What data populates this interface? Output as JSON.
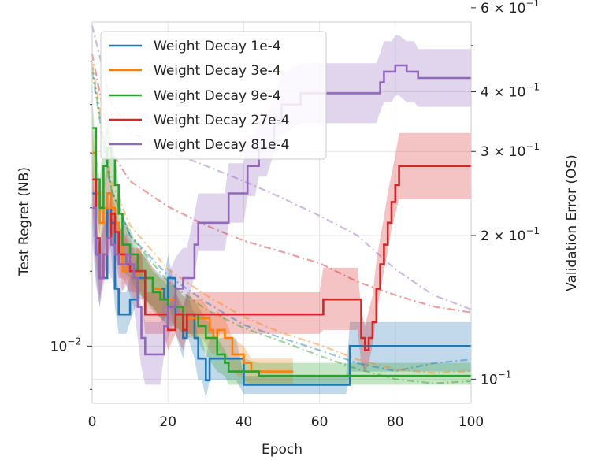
{
  "chart_data": {
    "type": "line",
    "title": "",
    "xlabel": "Epoch",
    "ylabel_left": "Test Regret (NB)",
    "ylabel_right": "Validation Error (OS)",
    "xlim": [
      0,
      100
    ],
    "ylim_left": [
      0.0087,
      0.022
    ],
    "ylim_right": [
      0.089,
      0.56
    ],
    "x_scale": "linear",
    "y_scale_left": "log",
    "y_scale_right": "log",
    "grid": true,
    "legend_position": "upper-left",
    "x_ticks": [
      0,
      20,
      40,
      60,
      80,
      100
    ],
    "x_tick_labels": [
      "0",
      "20",
      "40",
      "60",
      "80",
      "100"
    ],
    "y_left_ticks": [
      {
        "value": 0.01,
        "label": "10",
        "exp": "−2"
      }
    ],
    "y_right_ticks": [
      {
        "value": 0.6,
        "label": "6 × 10",
        "exp": "−1"
      },
      {
        "value": 0.4,
        "label": "4 × 10",
        "exp": "−1"
      },
      {
        "value": 0.3,
        "label": "3 × 10",
        "exp": "−1"
      },
      {
        "value": 0.2,
        "label": "2 × 10",
        "exp": "−1"
      },
      {
        "value": 0.1,
        "label": "10",
        "exp": "−1"
      }
    ],
    "series": [
      {
        "name": "Weight Decay 1e-4",
        "color": "#1f77b4",
        "regret": {
          "x": [
            0,
            1,
            2,
            4,
            5,
            6,
            7,
            9,
            10,
            12,
            14,
            16,
            19,
            20,
            22,
            24,
            25,
            27,
            28,
            29,
            30,
            31,
            38,
            40,
            49,
            50,
            66,
            67,
            68,
            100
          ],
          "y": [
            0.0145,
            0.0125,
            0.0118,
            0.0145,
            0.0135,
            0.0115,
            0.0108,
            0.0108,
            0.0112,
            0.0118,
            0.0118,
            0.0115,
            0.0112,
            0.0118,
            0.0108,
            0.0102,
            0.0108,
            0.0102,
            0.0097,
            0.0097,
            0.0092,
            0.0097,
            0.0097,
            0.0091,
            0.0091,
            0.0091,
            0.0091,
            0.0091,
            0.01,
            0.01
          ],
          "band_lower": [
            0.0135,
            0.0118,
            0.011,
            0.0135,
            0.0125,
            0.011,
            0.0103,
            0.0103,
            0.0106,
            0.0112,
            0.0112,
            0.011,
            0.0106,
            0.0112,
            0.0103,
            0.0097,
            0.0103,
            0.0097,
            0.0092,
            0.0092,
            0.0088,
            0.0092,
            0.0092,
            0.0089,
            0.0089,
            0.0089,
            0.0089,
            0.0089,
            0.0094,
            0.0094
          ],
          "band_upper": [
            0.0158,
            0.0133,
            0.0127,
            0.0158,
            0.0145,
            0.0122,
            0.0114,
            0.0114,
            0.0118,
            0.0125,
            0.0125,
            0.0121,
            0.0118,
            0.0125,
            0.0114,
            0.0108,
            0.0114,
            0.0108,
            0.0102,
            0.0102,
            0.0097,
            0.0102,
            0.0102,
            0.0093,
            0.0093,
            0.0093,
            0.0093,
            0.0093,
            0.0106,
            0.0106
          ]
        },
        "validation": {
          "x": [
            0,
            5,
            10,
            20,
            30,
            40,
            50,
            60,
            70,
            80,
            90,
            100
          ],
          "y": [
            0.44,
            0.25,
            0.2,
            0.165,
            0.145,
            0.13,
            0.122,
            0.115,
            0.108,
            0.104,
            0.108,
            0.11
          ]
        }
      },
      {
        "name": "Weight Decay 3e-4",
        "color": "#ff7f0e",
        "regret": {
          "x": [
            0,
            1,
            2,
            3,
            4,
            5,
            6,
            7,
            8,
            9,
            10,
            11,
            12,
            14,
            16,
            18,
            20,
            22,
            24,
            25,
            27,
            29,
            31,
            32,
            33,
            35,
            37,
            40,
            42,
            44,
            45,
            47,
            49,
            51,
            52,
            53
          ],
          "y": [
            0.016,
            0.0145,
            0.0135,
            0.014,
            0.0145,
            0.014,
            0.0135,
            0.013,
            0.012,
            0.0125,
            0.0122,
            0.0118,
            0.012,
            0.0118,
            0.0115,
            0.0112,
            0.0112,
            0.011,
            0.0108,
            0.0107,
            0.0107,
            0.0107,
            0.0104,
            0.0102,
            0.0104,
            0.0102,
            0.0098,
            0.0096,
            0.0094,
            0.0094,
            0.0094,
            0.0094,
            0.0094,
            0.0094,
            0.0094,
            0.0094
          ],
          "band_lower": [
            0.015,
            0.0136,
            0.0127,
            0.0132,
            0.0136,
            0.0132,
            0.0127,
            0.0122,
            0.0114,
            0.0118,
            0.0116,
            0.0112,
            0.0114,
            0.0112,
            0.011,
            0.0107,
            0.0107,
            0.0105,
            0.0103,
            0.0102,
            0.0102,
            0.0102,
            0.0099,
            0.0098,
            0.0099,
            0.0098,
            0.0094,
            0.0092,
            0.0091,
            0.0091,
            0.0091,
            0.0091,
            0.0091,
            0.0091,
            0.0091,
            0.0091
          ],
          "band_upper": [
            0.0172,
            0.0155,
            0.0144,
            0.0149,
            0.0155,
            0.0149,
            0.0144,
            0.0138,
            0.0127,
            0.0132,
            0.0129,
            0.0124,
            0.0127,
            0.0124,
            0.0121,
            0.0118,
            0.0118,
            0.0116,
            0.0113,
            0.0112,
            0.0112,
            0.0112,
            0.0109,
            0.0107,
            0.0109,
            0.0107,
            0.0102,
            0.01,
            0.0097,
            0.0097,
            0.0097,
            0.0097,
            0.0097,
            0.0097,
            0.0097,
            0.0097
          ]
        },
        "validation": {
          "x": [
            0,
            5,
            10,
            20,
            30,
            40,
            50,
            60,
            70,
            80,
            90,
            100
          ],
          "y": [
            0.46,
            0.26,
            0.21,
            0.17,
            0.15,
            0.135,
            0.125,
            0.118,
            0.11,
            0.105,
            0.103,
            0.104
          ]
        }
      },
      {
        "name": "Weight Decay 9e-4",
        "color": "#2ca02c",
        "regret": {
          "x": [
            0,
            1,
            2,
            3,
            4,
            5,
            6,
            7,
            8,
            10,
            12,
            14,
            16,
            18,
            20,
            22,
            24,
            26,
            28,
            30,
            33,
            35,
            36,
            37,
            38,
            40,
            44,
            50,
            60,
            70,
            80,
            90,
            100
          ],
          "y": [
            0.017,
            0.015,
            0.014,
            0.0155,
            0.0162,
            0.0158,
            0.0148,
            0.0138,
            0.0128,
            0.0125,
            0.012,
            0.0118,
            0.0114,
            0.0112,
            0.011,
            0.011,
            0.0108,
            0.0108,
            0.0105,
            0.0102,
            0.0098,
            0.0096,
            0.0094,
            0.0094,
            0.0094,
            0.0094,
            0.0093,
            0.0093,
            0.0093,
            0.0093,
            0.0093,
            0.0093,
            0.0093
          ],
          "band_lower": [
            0.0158,
            0.014,
            0.0131,
            0.0145,
            0.0151,
            0.0147,
            0.0138,
            0.0129,
            0.012,
            0.0118,
            0.0114,
            0.0112,
            0.0109,
            0.0107,
            0.0105,
            0.0105,
            0.0103,
            0.0103,
            0.0101,
            0.0098,
            0.0094,
            0.0093,
            0.0091,
            0.0091,
            0.0091,
            0.0091,
            0.0091,
            0.0091,
            0.0091,
            0.0091,
            0.0091,
            0.0091,
            0.0091
          ],
          "band_upper": [
            0.0183,
            0.0161,
            0.015,
            0.0166,
            0.0174,
            0.017,
            0.0158,
            0.0148,
            0.0137,
            0.0133,
            0.0127,
            0.0124,
            0.012,
            0.0118,
            0.0116,
            0.0116,
            0.0113,
            0.0113,
            0.011,
            0.0107,
            0.0102,
            0.0099,
            0.0097,
            0.0097,
            0.0097,
            0.0097,
            0.0096,
            0.0096,
            0.0096,
            0.0096,
            0.0096,
            0.0096,
            0.0096
          ]
        },
        "validation": {
          "x": [
            0,
            5,
            10,
            20,
            30,
            40,
            50,
            60,
            70,
            80,
            90,
            100
          ],
          "y": [
            0.45,
            0.25,
            0.2,
            0.16,
            0.14,
            0.128,
            0.12,
            0.112,
            0.105,
            0.1,
            0.098,
            0.099
          ]
        }
      },
      {
        "name": "Weight Decay 27e-4",
        "color": "#d62728",
        "regret": {
          "x": [
            0,
            1,
            2,
            3,
            4,
            5,
            6,
            7,
            8,
            9,
            10,
            13,
            14,
            18,
            19,
            20,
            22,
            24,
            25,
            60,
            61,
            70,
            71,
            72,
            73,
            74,
            75,
            76,
            77,
            78,
            79,
            80,
            81,
            100
          ],
          "y": [
            0.015,
            0.013,
            0.0118,
            0.0125,
            0.013,
            0.0138,
            0.0132,
            0.0125,
            0.0125,
            0.0122,
            0.012,
            0.012,
            0.0108,
            0.0108,
            0.0108,
            0.0104,
            0.0108,
            0.0104,
            0.0108,
            0.0108,
            0.0112,
            0.0112,
            0.0102,
            0.0099,
            0.0102,
            0.0106,
            0.0115,
            0.0122,
            0.0128,
            0.0135,
            0.0142,
            0.0148,
            0.0155,
            0.0155
          ],
          "band_lower": [
            0.0141,
            0.0123,
            0.0112,
            0.0118,
            0.0123,
            0.013,
            0.0125,
            0.0118,
            0.0118,
            0.0116,
            0.0114,
            0.0114,
            0.0103,
            0.0103,
            0.0103,
            0.0099,
            0.0103,
            0.0099,
            0.0103,
            0.0103,
            0.0104,
            0.0104,
            0.0096,
            0.0094,
            0.0096,
            0.01,
            0.0108,
            0.0114,
            0.012,
            0.0126,
            0.0133,
            0.0138,
            0.0143,
            0.0143
          ],
          "band_upper": [
            0.016,
            0.0138,
            0.0125,
            0.0133,
            0.0138,
            0.0147,
            0.014,
            0.0133,
            0.0133,
            0.013,
            0.0127,
            0.0127,
            0.0114,
            0.0114,
            0.0114,
            0.011,
            0.0114,
            0.011,
            0.0114,
            0.0114,
            0.0121,
            0.0121,
            0.0109,
            0.0105,
            0.0109,
            0.0113,
            0.0123,
            0.013,
            0.0137,
            0.0145,
            0.0152,
            0.0159,
            0.0168,
            0.0168
          ]
        },
        "validation": {
          "x": [
            0,
            5,
            10,
            20,
            30,
            40,
            50,
            60,
            70,
            80,
            90,
            100
          ],
          "y": [
            0.48,
            0.3,
            0.26,
            0.23,
            0.21,
            0.195,
            0.185,
            0.175,
            0.16,
            0.15,
            0.142,
            0.138
          ]
        }
      },
      {
        "name": "Weight Decay 81e-4",
        "color": "#9467bd",
        "regret": {
          "x": [
            0,
            1,
            2,
            3,
            4,
            5,
            6,
            7,
            9,
            10,
            11,
            12,
            13,
            14,
            15,
            18,
            19,
            20,
            22,
            24,
            25,
            27,
            28,
            35,
            36,
            40,
            41,
            43,
            44,
            46,
            48,
            50,
            55,
            60,
            70,
            73,
            75,
            76,
            77,
            78,
            79,
            80,
            81,
            83,
            84,
            85,
            86,
            100
          ],
          "y": [
            0.014,
            0.0125,
            0.0118,
            0.0125,
            0.013,
            0.0128,
            0.0125,
            0.0122,
            0.0125,
            0.0122,
            0.0118,
            0.011,
            0.0102,
            0.0098,
            0.0098,
            0.0098,
            0.0105,
            0.011,
            0.0115,
            0.0118,
            0.0118,
            0.0128,
            0.0135,
            0.0135,
            0.0145,
            0.0145,
            0.0155,
            0.0155,
            0.0162,
            0.0162,
            0.0172,
            0.018,
            0.0185,
            0.0185,
            0.0185,
            0.0185,
            0.0185,
            0.019,
            0.0195,
            0.0195,
            0.0195,
            0.0198,
            0.0198,
            0.0195,
            0.0195,
            0.0195,
            0.0192,
            0.0192
          ],
          "band_lower": [
            0.013,
            0.0116,
            0.011,
            0.0116,
            0.012,
            0.0118,
            0.0116,
            0.0113,
            0.0116,
            0.0113,
            0.011,
            0.0102,
            0.0095,
            0.0091,
            0.0091,
            0.0091,
            0.0098,
            0.0102,
            0.0107,
            0.011,
            0.011,
            0.0119,
            0.0126,
            0.0126,
            0.0135,
            0.0135,
            0.0144,
            0.0144,
            0.0151,
            0.0151,
            0.016,
            0.0167,
            0.0172,
            0.0172,
            0.0172,
            0.0172,
            0.0172,
            0.0177,
            0.0181,
            0.0181,
            0.0181,
            0.0184,
            0.0184,
            0.0181,
            0.0181,
            0.0181,
            0.0179,
            0.0179
          ],
          "band_upper": [
            0.0151,
            0.0135,
            0.0127,
            0.0135,
            0.014,
            0.0138,
            0.0135,
            0.0132,
            0.0135,
            0.0132,
            0.0127,
            0.0119,
            0.011,
            0.0106,
            0.0106,
            0.0106,
            0.0113,
            0.0119,
            0.0124,
            0.0127,
            0.0127,
            0.0138,
            0.0145,
            0.0145,
            0.0156,
            0.0156,
            0.0167,
            0.0167,
            0.0174,
            0.0174,
            0.0185,
            0.0194,
            0.0199,
            0.0199,
            0.0199,
            0.0199,
            0.0199,
            0.0204,
            0.021,
            0.021,
            0.021,
            0.0213,
            0.0213,
            0.021,
            0.021,
            0.021,
            0.0206,
            0.0206
          ]
        },
        "validation": {
          "x": [
            0,
            5,
            10,
            20,
            30,
            40,
            50,
            60,
            70,
            80,
            90,
            100
          ],
          "y": [
            0.55,
            0.38,
            0.33,
            0.3,
            0.28,
            0.26,
            0.24,
            0.22,
            0.2,
            0.17,
            0.15,
            0.14
          ]
        }
      }
    ]
  }
}
